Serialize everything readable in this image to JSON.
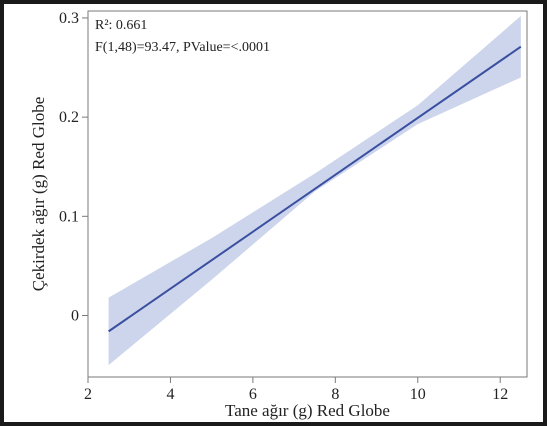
{
  "chart_data": {
    "type": "line",
    "xlabel": "Tane ağır (g) Red Globe",
    "ylabel": "Çekirdek ağır (g) Red Globe",
    "xlim": [
      2,
      12.65
    ],
    "ylim": [
      -0.062,
      0.307
    ],
    "x_ticks": [
      2,
      4,
      6,
      8,
      10,
      12
    ],
    "y_ticks": [
      0,
      0.1,
      0.2,
      0.3
    ],
    "x_tick_labels": [
      "2",
      "4",
      "6",
      "8",
      "10",
      "12"
    ],
    "y_tick_labels": [
      "0",
      "0.1",
      "0.2",
      "0.3"
    ],
    "annotations": {
      "r2": "R²: 0.661",
      "ftest": "F(1,48)=93.47, PValue=<.0001"
    },
    "fit_line": {
      "x": [
        2.5,
        12.5
      ],
      "y": [
        -0.016,
        0.271
      ]
    },
    "confidence_band": {
      "x": [
        2.5,
        5.0,
        7.5,
        10.0,
        12.5
      ],
      "lower": [
        -0.05,
        0.036,
        0.125,
        0.193,
        0.24
      ],
      "upper": [
        0.018,
        0.078,
        0.143,
        0.212,
        0.302
      ]
    },
    "colors": {
      "line": "#3a4fa0",
      "band": "#ccd5eb",
      "axis": "#7a7a7a",
      "text": "#222222"
    },
    "grid": false
  }
}
